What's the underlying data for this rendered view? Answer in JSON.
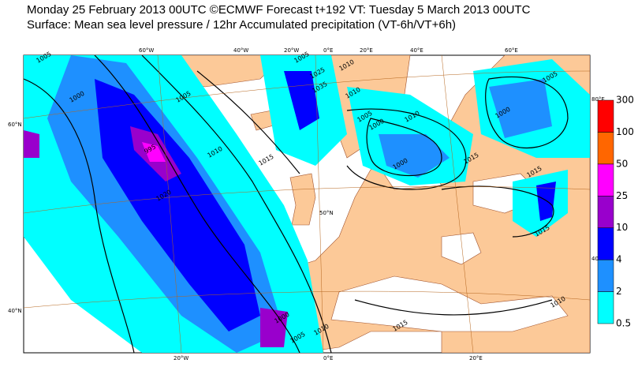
{
  "header": {
    "title": "Monday 25 February 2013 00UTC ©ECMWF Forecast t+192 VT: Tuesday 5 March 2013 00UTC",
    "subtitle": "Surface: Mean sea level pressure / 12hr Accumulated precipitation (VT-6h/VT+6h)"
  },
  "map": {
    "longitude_labels": [
      "60°W",
      "40°W",
      "20°W",
      "0°E",
      "20°E",
      "40°E",
      "60°E",
      "20°W",
      "0°E",
      "20°E"
    ],
    "latitude_labels": [
      "60°N",
      "50°N",
      "40°N",
      "80°E",
      "40°E"
    ],
    "isobar_labels": [
      "1005",
      "1000",
      "1005",
      "1010",
      "1015",
      "1020",
      "1025",
      "1035",
      "1010",
      "1005",
      "1010",
      "1005",
      "1000",
      "995",
      "1000",
      "1010",
      "1015",
      "1000",
      "1015",
      "1005",
      "1000",
      "1005",
      "1010",
      "1015",
      "1015",
      "1010"
    ]
  },
  "legend": {
    "ticks": [
      0.5,
      2,
      4,
      10,
      25,
      50,
      100,
      300
    ],
    "colors": [
      "#00ffff",
      "#1e90ff",
      "#0000ff",
      "#9900cc",
      "#ff00ff",
      "#ff6600",
      "#ff0000"
    ]
  }
}
